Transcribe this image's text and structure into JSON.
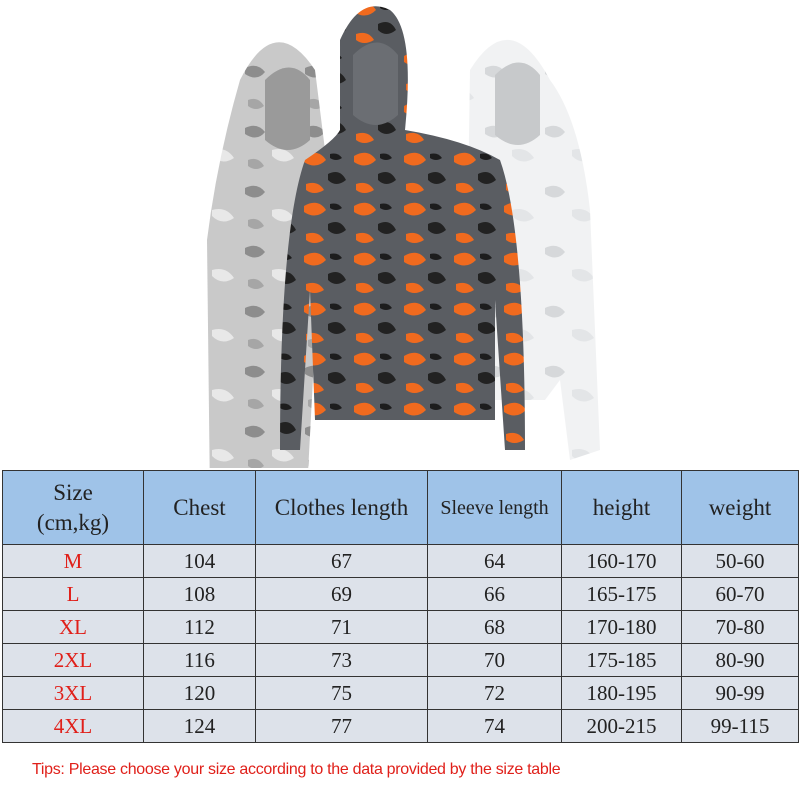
{
  "colors": {
    "header_bg": "#9fc3e8",
    "row_bg": "#dde2ea",
    "size_text": "#e0201a",
    "tip_text": "#e0201a",
    "orange": "#f06a1e"
  },
  "product_image": {
    "items": [
      "grey-camo-hoodie",
      "orange-camo-hoodie",
      "white-camo-hoodie"
    ]
  },
  "size_table": {
    "headers": [
      "Size\n(cm,kg)",
      "Chest",
      "Clothes length",
      "Sleeve length",
      "height",
      "weight"
    ],
    "header_size_line1": "Size",
    "header_size_line2": "(cm,kg)",
    "rows": [
      [
        "M",
        "104",
        "67",
        "64",
        "160-170",
        "50-60"
      ],
      [
        "L",
        "108",
        "69",
        "66",
        "165-175",
        "60-70"
      ],
      [
        "XL",
        "112",
        "71",
        "68",
        "170-180",
        "70-80"
      ],
      [
        "2XL",
        "116",
        "73",
        "70",
        "175-185",
        "80-90"
      ],
      [
        "3XL",
        "120",
        "75",
        "72",
        "180-195",
        "90-99"
      ],
      [
        "4XL",
        "124",
        "77",
        "74",
        "200-215",
        "99-115"
      ]
    ]
  },
  "tip": "Tips: Please choose your size according to the data provided by the size table"
}
